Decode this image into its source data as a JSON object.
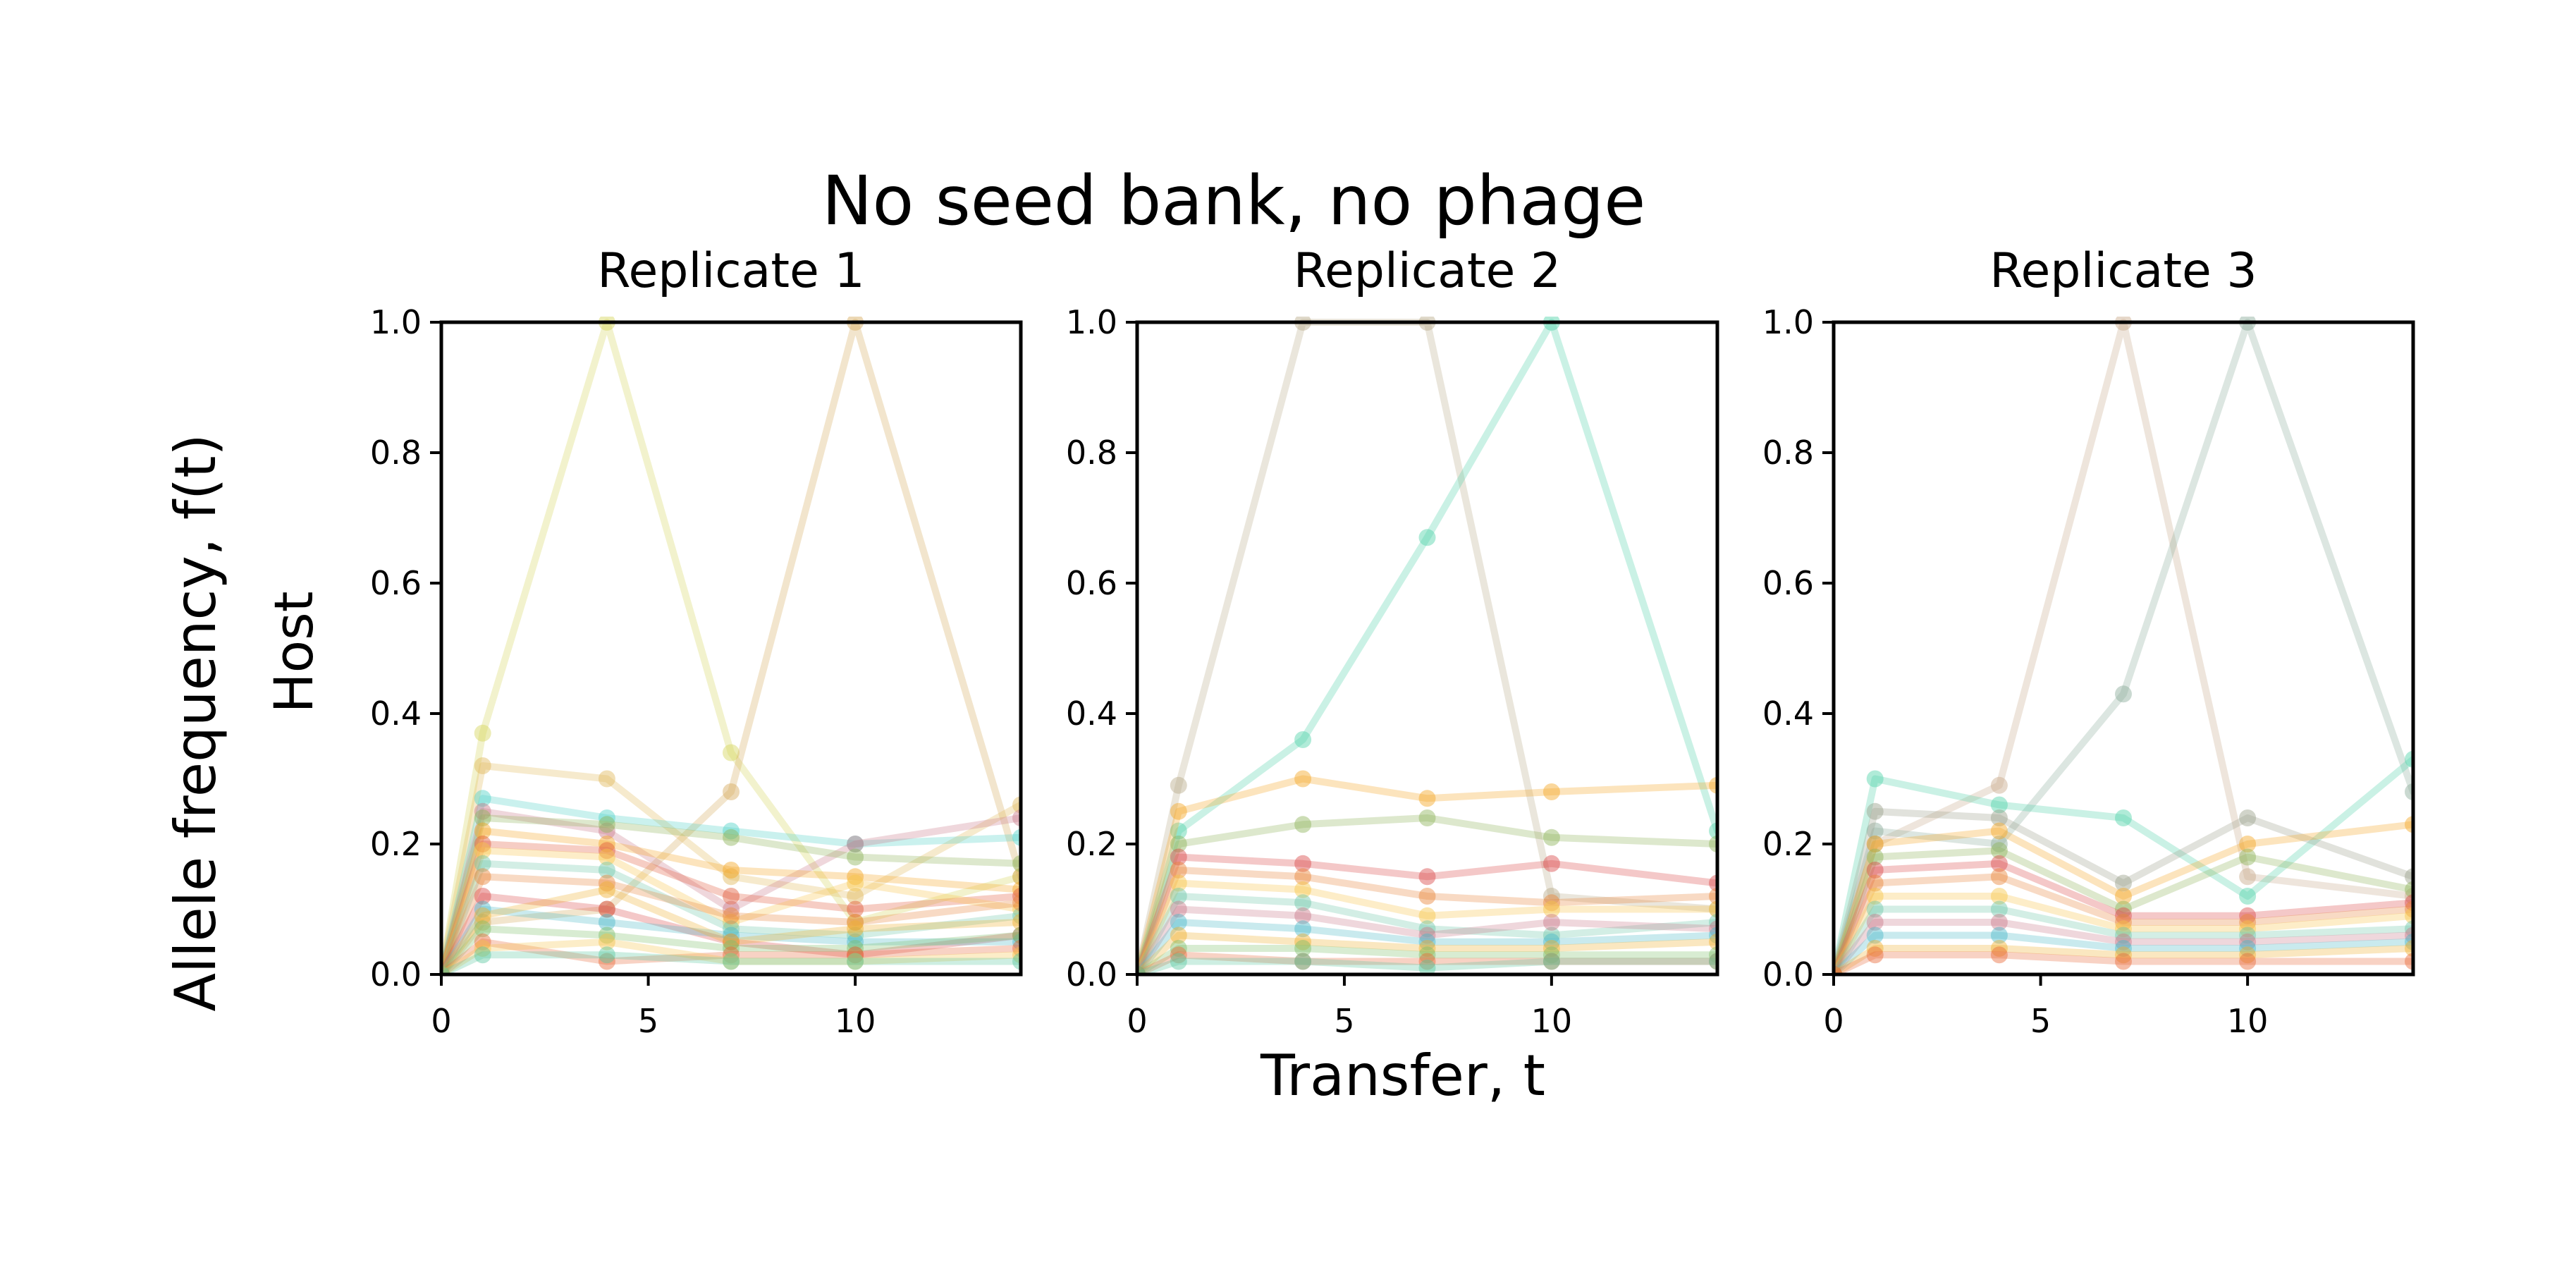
{
  "figure": {
    "suptitle": "No seed bank, no phage",
    "ylabel_main": "Allele frequency, f(t)",
    "ylabel_sub": "Host",
    "xlabel": "Transfer, t"
  },
  "chart_data": [
    {
      "type": "line",
      "title": "Replicate 1",
      "xlabel": "Transfer, t",
      "ylabel": "Allele frequency, f(t)",
      "xlim": [
        0,
        14
      ],
      "ylim": [
        0,
        1.0
      ],
      "xticks": [
        0,
        5,
        10
      ],
      "yticks": [
        0.0,
        0.2,
        0.4,
        0.6,
        0.8,
        1.0
      ],
      "x": [
        0,
        1,
        4,
        7,
        10,
        14
      ],
      "line_alpha": 0.3,
      "series": [
        {
          "color": "#d4d45a",
          "values": [
            0.0,
            0.37,
            1.0,
            0.34,
            0.08,
            0.15
          ]
        },
        {
          "color": "#d4a95a",
          "values": [
            0.0,
            0.08,
            0.1,
            0.28,
            1.0,
            0.15
          ]
        },
        {
          "color": "#e0b85a",
          "values": [
            0.0,
            0.32,
            0.3,
            0.15,
            0.12,
            0.26
          ]
        },
        {
          "color": "#4fd2c8",
          "values": [
            0.0,
            0.27,
            0.24,
            0.22,
            0.2,
            0.21
          ]
        },
        {
          "color": "#c97a8a",
          "values": [
            0.0,
            0.25,
            0.22,
            0.1,
            0.2,
            0.24
          ]
        },
        {
          "color": "#8fb35a",
          "values": [
            0.0,
            0.24,
            0.23,
            0.21,
            0.18,
            0.17
          ]
        },
        {
          "color": "#f5a623",
          "values": [
            0.0,
            0.22,
            0.2,
            0.16,
            0.15,
            0.13
          ]
        },
        {
          "color": "#e05a3a",
          "values": [
            0.0,
            0.2,
            0.19,
            0.12,
            0.1,
            0.12
          ]
        },
        {
          "color": "#f7c548",
          "values": [
            0.0,
            0.19,
            0.18,
            0.08,
            0.14,
            0.1
          ]
        },
        {
          "color": "#6ec6a8",
          "values": [
            0.0,
            0.17,
            0.16,
            0.07,
            0.06,
            0.09
          ]
        },
        {
          "color": "#e8843a",
          "values": [
            0.0,
            0.15,
            0.14,
            0.09,
            0.08,
            0.11
          ]
        },
        {
          "color": "#d94a4a",
          "values": [
            0.0,
            0.12,
            0.1,
            0.05,
            0.03,
            0.06
          ]
        },
        {
          "color": "#4bb8c8",
          "values": [
            0.0,
            0.1,
            0.08,
            0.06,
            0.05,
            0.05
          ]
        },
        {
          "color": "#f0b030",
          "values": [
            0.0,
            0.09,
            0.13,
            0.05,
            0.07,
            0.08
          ]
        },
        {
          "color": "#7fbf6a",
          "values": [
            0.0,
            0.07,
            0.06,
            0.04,
            0.04,
            0.06
          ]
        },
        {
          "color": "#e86a3a",
          "values": [
            0.0,
            0.05,
            0.02,
            0.03,
            0.03,
            0.04
          ]
        },
        {
          "color": "#f5c24a",
          "values": [
            0.0,
            0.04,
            0.05,
            0.02,
            0.02,
            0.03
          ]
        },
        {
          "color": "#5ac8a0",
          "values": [
            0.0,
            0.03,
            0.03,
            0.02,
            0.02,
            0.02
          ]
        }
      ]
    },
    {
      "type": "line",
      "title": "Replicate 2",
      "xlabel": "Transfer, t",
      "ylabel": "Allele frequency, f(t)",
      "xlim": [
        0,
        14
      ],
      "ylim": [
        0,
        1.0
      ],
      "xticks": [
        0,
        5,
        10
      ],
      "yticks": [
        0.0,
        0.2,
        0.4,
        0.6,
        0.8,
        1.0
      ],
      "x": [
        0,
        1,
        4,
        7,
        10,
        14
      ],
      "line_alpha": 0.3,
      "series": [
        {
          "color": "#b8ab8a",
          "values": [
            0.0,
            0.29,
            1.0,
            1.0,
            0.12,
            0.1
          ]
        },
        {
          "color": "#4fd2a8",
          "values": [
            0.0,
            0.22,
            0.36,
            0.67,
            1.0,
            0.22
          ]
        },
        {
          "color": "#f5a623",
          "values": [
            0.0,
            0.25,
            0.3,
            0.27,
            0.28,
            0.29
          ]
        },
        {
          "color": "#8fb35a",
          "values": [
            0.0,
            0.2,
            0.23,
            0.24,
            0.21,
            0.2
          ]
        },
        {
          "color": "#d94a4a",
          "values": [
            0.0,
            0.18,
            0.17,
            0.15,
            0.17,
            0.14
          ]
        },
        {
          "color": "#e8843a",
          "values": [
            0.0,
            0.16,
            0.15,
            0.12,
            0.11,
            0.12
          ]
        },
        {
          "color": "#f7c548",
          "values": [
            0.0,
            0.14,
            0.13,
            0.09,
            0.1,
            0.1
          ]
        },
        {
          "color": "#6ec6a8",
          "values": [
            0.0,
            0.12,
            0.11,
            0.07,
            0.06,
            0.08
          ]
        },
        {
          "color": "#c97a8a",
          "values": [
            0.0,
            0.1,
            0.09,
            0.06,
            0.08,
            0.07
          ]
        },
        {
          "color": "#4bb8c8",
          "values": [
            0.0,
            0.08,
            0.07,
            0.05,
            0.05,
            0.06
          ]
        },
        {
          "color": "#f0b030",
          "values": [
            0.0,
            0.06,
            0.05,
            0.04,
            0.04,
            0.05
          ]
        },
        {
          "color": "#7fbf6a",
          "values": [
            0.0,
            0.04,
            0.04,
            0.03,
            0.03,
            0.03
          ]
        },
        {
          "color": "#e86a3a",
          "values": [
            0.0,
            0.03,
            0.02,
            0.02,
            0.02,
            0.02
          ]
        },
        {
          "color": "#5ac8a0",
          "values": [
            0.0,
            0.02,
            0.02,
            0.01,
            0.02,
            0.02
          ]
        }
      ]
    },
    {
      "type": "line",
      "title": "Replicate 3",
      "xlabel": "Transfer, t",
      "ylabel": "Allele frequency, f(t)",
      "xlim": [
        0,
        14
      ],
      "ylim": [
        0,
        1.0
      ],
      "xticks": [
        0,
        5,
        10
      ],
      "yticks": [
        0.0,
        0.2,
        0.4,
        0.6,
        0.8,
        1.0
      ],
      "x": [
        0,
        1,
        4,
        7,
        10,
        14
      ],
      "line_alpha": 0.3,
      "series": [
        {
          "color": "#c8a98a",
          "values": [
            0.0,
            0.2,
            0.29,
            1.0,
            0.15,
            0.12
          ]
        },
        {
          "color": "#8aab9a",
          "values": [
            0.0,
            0.22,
            0.2,
            0.43,
            1.0,
            0.28
          ]
        },
        {
          "color": "#4fd2a8",
          "values": [
            0.0,
            0.3,
            0.26,
            0.24,
            0.12,
            0.33
          ]
        },
        {
          "color": "#9aa08a",
          "values": [
            0.0,
            0.25,
            0.24,
            0.14,
            0.24,
            0.15
          ]
        },
        {
          "color": "#f5a623",
          "values": [
            0.0,
            0.2,
            0.22,
            0.12,
            0.2,
            0.23
          ]
        },
        {
          "color": "#8fb35a",
          "values": [
            0.0,
            0.18,
            0.19,
            0.1,
            0.18,
            0.13
          ]
        },
        {
          "color": "#d94a4a",
          "values": [
            0.0,
            0.16,
            0.17,
            0.09,
            0.09,
            0.11
          ]
        },
        {
          "color": "#e8843a",
          "values": [
            0.0,
            0.14,
            0.15,
            0.08,
            0.08,
            0.1
          ]
        },
        {
          "color": "#f7c548",
          "values": [
            0.0,
            0.12,
            0.12,
            0.07,
            0.07,
            0.09
          ]
        },
        {
          "color": "#6ec6a8",
          "values": [
            0.0,
            0.1,
            0.1,
            0.06,
            0.06,
            0.07
          ]
        },
        {
          "color": "#c97a8a",
          "values": [
            0.0,
            0.08,
            0.08,
            0.05,
            0.05,
            0.06
          ]
        },
        {
          "color": "#4bb8c8",
          "values": [
            0.0,
            0.06,
            0.06,
            0.04,
            0.04,
            0.05
          ]
        },
        {
          "color": "#f0b030",
          "values": [
            0.0,
            0.04,
            0.04,
            0.03,
            0.03,
            0.04
          ]
        },
        {
          "color": "#e86a3a",
          "values": [
            0.0,
            0.03,
            0.03,
            0.02,
            0.02,
            0.02
          ]
        }
      ]
    }
  ]
}
